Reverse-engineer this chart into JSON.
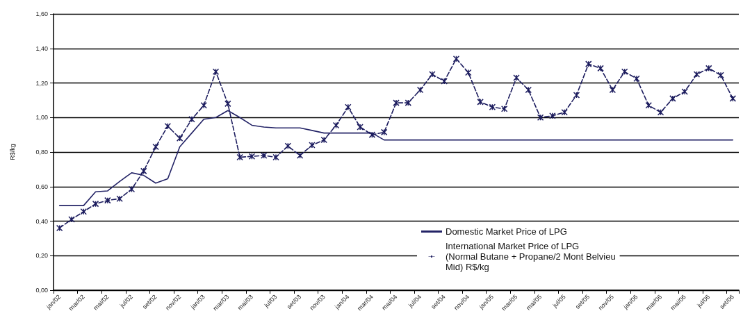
{
  "chart_data": {
    "type": "line",
    "ylabel": "R$/kg",
    "categories": [
      "jan/02",
      null,
      "mar/02",
      null,
      "mai/02",
      null,
      "jul/02",
      null,
      "set/02",
      null,
      "nov/02",
      null,
      "jan/03",
      null,
      "mar/03",
      null,
      "mai/03",
      null,
      "jul/03",
      null,
      "set/03",
      null,
      "nov/03",
      null,
      "jan/04",
      null,
      "mar/04",
      null,
      "mai/04",
      null,
      "jul/04",
      null,
      "set/04",
      null,
      "nov/04",
      null,
      "jan/05",
      null,
      "mar/05",
      null,
      "mai/05",
      null,
      "jul/05",
      null,
      "set/05",
      null,
      "nov/05",
      null,
      "jan/06",
      null,
      "mar/06",
      null,
      "mai/06",
      null,
      "jul/06",
      null,
      "set/06"
    ],
    "series": [
      {
        "name": "Domestic Market Price of LPG",
        "color": "#232366",
        "marker": "none",
        "line_style": "solid",
        "values": [
          0.49,
          0.49,
          0.49,
          0.57,
          0.575,
          0.63,
          0.68,
          0.665,
          0.62,
          0.645,
          0.83,
          0.91,
          0.99,
          1.0,
          1.04,
          1.0,
          0.955,
          0.945,
          0.94,
          0.94,
          0.94,
          0.925,
          0.91,
          0.91,
          0.91,
          0.91,
          0.91,
          0.87,
          0.87,
          0.87,
          0.87,
          0.87,
          0.87,
          0.87,
          0.87,
          0.87,
          0.87,
          0.87,
          0.87,
          0.87,
          0.87,
          0.87,
          0.87,
          0.87,
          0.87,
          0.87,
          0.87,
          0.87,
          0.87,
          0.87,
          0.87,
          0.87,
          0.87,
          0.87,
          0.87,
          0.87,
          0.87
        ]
      },
      {
        "name": "International Market Price of LPG (Normal Butane + Propane/2 Mont Belvieu Mid) R$/kg",
        "color": "#1c1c5e",
        "marker": "cross",
        "line_style": "dashed",
        "values": [
          0.36,
          0.41,
          0.455,
          0.5,
          0.52,
          0.53,
          0.585,
          0.69,
          0.83,
          0.95,
          0.88,
          0.99,
          1.07,
          1.265,
          1.08,
          0.77,
          0.775,
          0.78,
          0.77,
          0.835,
          0.78,
          0.84,
          0.87,
          0.955,
          1.06,
          0.945,
          0.9,
          0.915,
          1.085,
          1.085,
          1.16,
          1.25,
          1.21,
          1.34,
          1.26,
          1.09,
          1.06,
          1.05,
          1.23,
          1.16,
          1.0,
          1.01,
          1.03,
          1.13,
          1.31,
          1.285,
          1.16,
          1.265,
          1.225,
          1.07,
          1.03,
          1.11,
          1.15,
          1.25,
          1.285,
          1.245,
          1.11
        ]
      }
    ],
    "ylim": [
      0,
      1.6
    ],
    "yticks": [
      {
        "value": 0,
        "label": "0,00"
      },
      {
        "value": 0.2,
        "label": "0,20"
      },
      {
        "value": 0.4,
        "label": "0,40"
      },
      {
        "value": 0.6,
        "label": "0,60"
      },
      {
        "value": 0.8,
        "label": "0,80"
      },
      {
        "value": 1.0,
        "label": "1,00"
      },
      {
        "value": 1.2,
        "label": "1,20"
      },
      {
        "value": 1.4,
        "label": "1,40"
      },
      {
        "value": 1.6,
        "label": "1,60"
      }
    ],
    "grid": "y",
    "legend": "bottom right"
  }
}
